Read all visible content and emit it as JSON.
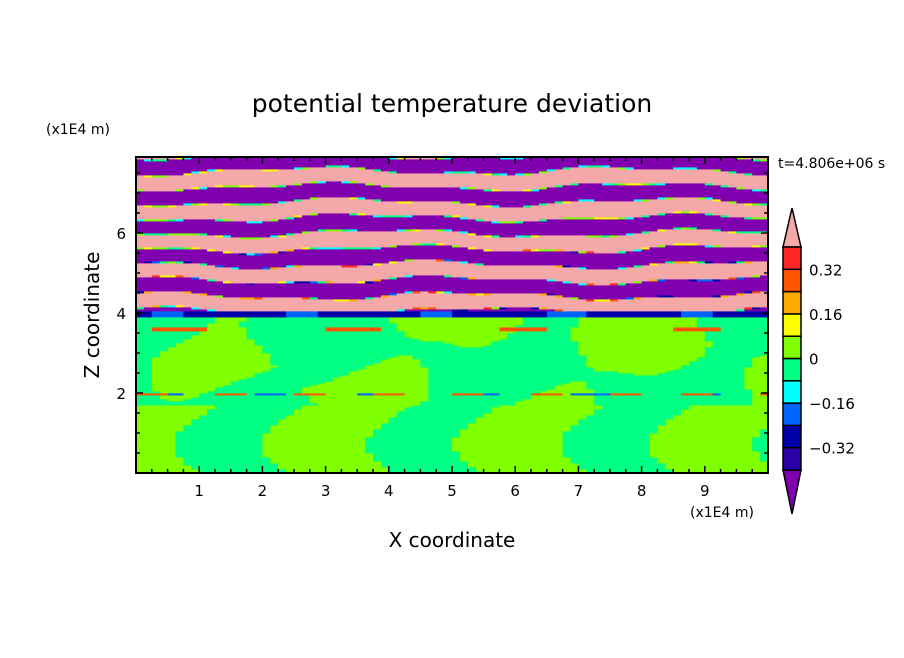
{
  "chart_data": {
    "type": "heatmap",
    "title": "potential temperature deviation",
    "xlabel": "X coordinate",
    "ylabel": "Z coordinate",
    "x_unit": "(x1E4 m)",
    "y_unit": "(x1E4 m)",
    "time_label": "t=4.806e+06 s",
    "xlim": [
      0,
      10
    ],
    "ylim": [
      0,
      7.9
    ],
    "x_ticks": [
      "1",
      "2",
      "3",
      "4",
      "5",
      "6",
      "7",
      "8",
      "9"
    ],
    "x_tick_values": [
      1,
      2,
      3,
      4,
      5,
      6,
      7,
      8,
      9
    ],
    "y_ticks": [
      "2",
      "4",
      "6"
    ],
    "y_tick_values": [
      2,
      4,
      6
    ],
    "levels": [
      -0.4,
      -0.32,
      -0.24,
      -0.16,
      -0.08,
      0,
      0.08,
      0.16,
      0.24,
      0.32,
      0.4
    ],
    "colorbar_labels": [
      "0.32",
      "0.16",
      "0",
      "-0.16",
      "-0.32"
    ],
    "colorbar_label_values": [
      0.32,
      0.16,
      0,
      -0.16,
      -0.32
    ],
    "colors": {
      "under": "#8000b0",
      "bins": [
        "#2a00a8",
        "#0000a8",
        "#0064ff",
        "#00ffff",
        "#00ff82",
        "#80ff00",
        "#ffff00",
        "#ffaa00",
        "#ff5500",
        "#ff2828"
      ],
      "over": "#f4a8a8"
    },
    "description_regions": [
      {
        "z_range": [
          0,
          3.9
        ],
        "values": "mostly -0.08..0.08 (green / yellow-green)"
      },
      {
        "z_range": [
          3.9,
          4.05
        ],
        "values": "≈ -0.3 (dark blue layer)"
      },
      {
        "z_range": [
          4.05,
          7.9
        ],
        "values": "alternating < -0.4 and > 0.4 stripes"
      }
    ]
  }
}
